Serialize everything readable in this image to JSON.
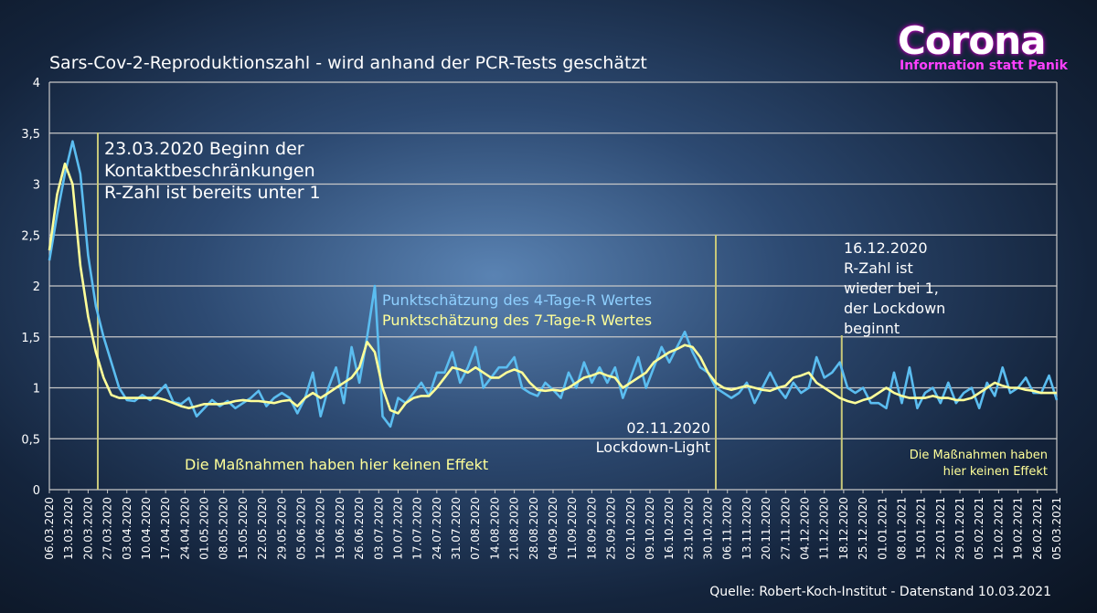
{
  "title": "Sars-Cov-2-Reproduktionszahl - wird anhand der PCR-Tests geschätzt",
  "logo": {
    "word": "Corona",
    "tagline": "Information statt Panik"
  },
  "source": "Quelle: Robert-Koch-Institut - Datenstand 10.03.2021",
  "colors": {
    "series_4day": "#5bbdf0",
    "series_7day": "#ffff99",
    "grid": "#c8c8c8",
    "marker": "#c8c87a",
    "text": "#ffffff",
    "note_yellow": "#ffff99",
    "note_blue": "#8fd0ff"
  },
  "chart_data": {
    "type": "line",
    "title": "Sars-Cov-2-Reproduktionszahl - wird anhand der PCR-Tests geschätzt",
    "ylim": [
      0,
      4
    ],
    "yticks": [
      "0",
      "0,5",
      "1",
      "1,5",
      "2",
      "2,5",
      "3",
      "3,5",
      "4"
    ],
    "x_start": "06.03.2020",
    "x_end": "05.03.2021",
    "x_tick_labels": [
      "06.03.2020",
      "13.03.2020",
      "20.03.2020",
      "27.03.2020",
      "03.04.2020",
      "10.04.2020",
      "17.04.2020",
      "24.04.2020",
      "01.05.2020",
      "08.05.2020",
      "15.05.2020",
      "22.05.2020",
      "29.05.2020",
      "05.06.2020",
      "12.06.2020",
      "19.06.2020",
      "26.06.2020",
      "03.07.2020",
      "10.07.2020",
      "17.07.2020",
      "24.07.2020",
      "31.07.2020",
      "07.08.2020",
      "14.08.2020",
      "21.08.2020",
      "28.08.2020",
      "04.09.2020",
      "11.09.2020",
      "18.09.2020",
      "25.09.2020",
      "02.10.2020",
      "09.10.2020",
      "16.10.2020",
      "23.10.2020",
      "30.10.2020",
      "06.11.2020",
      "13.11.2020",
      "20.11.2020",
      "27.11.2020",
      "04.12.2020",
      "11.12.2020",
      "18.12.2020",
      "25.12.2020",
      "01.01.2021",
      "08.01.2021",
      "15.01.2021",
      "22.01.2021",
      "29.01.2021",
      "05.02.2021",
      "12.02.2021",
      "19.02.2021",
      "26.02.2021",
      "05.03.2021"
    ],
    "series": [
      {
        "name": "Punktschätzung des 4-Tage-R Wertes",
        "values": [
          2.25,
          2.7,
          3.1,
          3.42,
          3.1,
          2.3,
          1.8,
          1.5,
          1.25,
          1.0,
          0.88,
          0.87,
          0.93,
          0.88,
          0.95,
          1.03,
          0.86,
          0.84,
          0.9,
          0.72,
          0.8,
          0.88,
          0.82,
          0.87,
          0.8,
          0.85,
          0.9,
          0.97,
          0.82,
          0.9,
          0.95,
          0.9,
          0.75,
          0.9,
          1.15,
          0.72,
          1.0,
          1.2,
          0.85,
          1.4,
          1.05,
          1.5,
          2.0,
          0.72,
          0.62,
          0.9,
          0.85,
          0.95,
          1.05,
          0.92,
          1.15,
          1.15,
          1.35,
          1.05,
          1.2,
          1.4,
          1.0,
          1.1,
          1.2,
          1.2,
          1.3,
          1.0,
          0.95,
          0.92,
          1.05,
          0.98,
          0.9,
          1.15,
          1.0,
          1.25,
          1.05,
          1.2,
          1.05,
          1.2,
          0.9,
          1.1,
          1.3,
          1.0,
          1.2,
          1.4,
          1.25,
          1.4,
          1.55,
          1.35,
          1.2,
          1.15,
          1.0,
          0.95,
          0.9,
          0.95,
          1.05,
          0.85,
          1.0,
          1.15,
          1.0,
          0.9,
          1.05,
          0.95,
          1.0,
          1.3,
          1.1,
          1.15,
          1.25,
          1.0,
          0.95,
          1.0,
          0.85,
          0.85,
          0.8,
          1.15,
          0.85,
          1.2,
          0.8,
          0.95,
          1.0,
          0.85,
          1.05,
          0.85,
          0.95,
          1.0,
          0.8,
          1.05,
          0.92,
          1.2,
          0.95,
          1.0,
          1.1,
          0.95,
          0.95,
          1.12,
          0.88
        ],
        "color": "#5bbdf0"
      },
      {
        "name": "Punktschätzung des 7-Tage-R Wertes",
        "values": [
          2.35,
          2.9,
          3.2,
          3.0,
          2.2,
          1.7,
          1.35,
          1.1,
          0.93,
          0.9,
          0.9,
          0.9,
          0.9,
          0.9,
          0.9,
          0.88,
          0.85,
          0.82,
          0.8,
          0.82,
          0.84,
          0.84,
          0.84,
          0.85,
          0.87,
          0.88,
          0.87,
          0.87,
          0.86,
          0.85,
          0.87,
          0.88,
          0.82,
          0.9,
          0.95,
          0.9,
          0.95,
          1.0,
          1.05,
          1.1,
          1.2,
          1.45,
          1.35,
          1.0,
          0.78,
          0.75,
          0.85,
          0.9,
          0.92,
          0.92,
          1.0,
          1.1,
          1.2,
          1.18,
          1.15,
          1.2,
          1.15,
          1.1,
          1.1,
          1.15,
          1.18,
          1.15,
          1.05,
          0.98,
          0.97,
          0.98,
          0.97,
          1.0,
          1.05,
          1.1,
          1.12,
          1.15,
          1.12,
          1.1,
          1.0,
          1.05,
          1.1,
          1.15,
          1.25,
          1.3,
          1.35,
          1.38,
          1.42,
          1.4,
          1.3,
          1.15,
          1.05,
          1.0,
          0.98,
          1.0,
          1.02,
          1.0,
          0.98,
          0.97,
          1.0,
          1.02,
          1.1,
          1.12,
          1.15,
          1.05,
          1.0,
          0.95,
          0.9,
          0.87,
          0.85,
          0.88,
          0.9,
          0.95,
          1.0,
          0.95,
          0.92,
          0.9,
          0.9,
          0.9,
          0.92,
          0.9,
          0.9,
          0.88,
          0.88,
          0.9,
          0.95,
          1.0,
          1.05,
          1.02,
          1.0,
          1.0,
          0.98,
          0.97,
          0.95,
          0.95,
          0.95
        ],
        "color": "#ffff99"
      }
    ],
    "markers": [
      {
        "date_index": 2.5,
        "label_lines": [
          "23.03.2020 Beginn der",
          "Kontaktbeschränkungen",
          "R-Zahl ist bereits unter 1"
        ]
      },
      {
        "date_index": 34.4,
        "label_lines": [
          "02.11.2020",
          "Lockdown-Light"
        ]
      },
      {
        "date_index": 40.9,
        "label_lines": [
          "16.12.2020",
          "R-Zahl ist",
          "wieder bei 1,",
          "der Lockdown",
          "beginnt"
        ]
      }
    ],
    "legend": [
      "Punktschätzung des 4-Tage-R Wertes",
      "Punktschätzung des 7-Tage-R Wertes"
    ],
    "notes": [
      "Die Maßnahmen haben hier keinen Effekt",
      "Die Maßnahmen haben",
      "hier keinen Effekt"
    ]
  }
}
